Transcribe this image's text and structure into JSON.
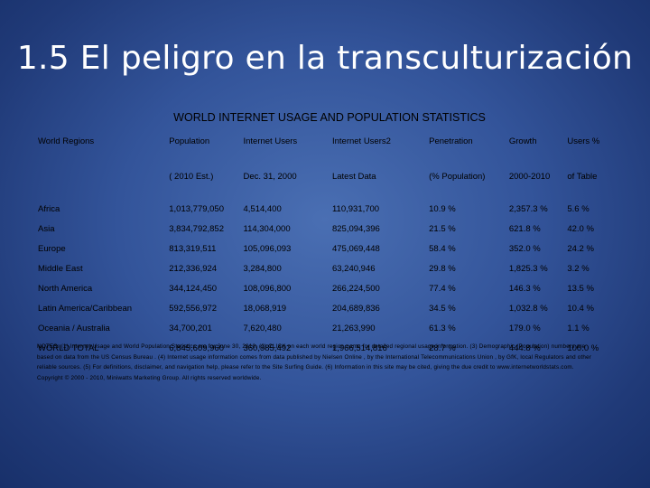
{
  "slide": {
    "title": "1.5 El peligro en la transculturización"
  },
  "table": {
    "title": "WORLD INTERNET USAGE AND POPULATION STATISTICS",
    "header": [
      "World Regions",
      "Population",
      "Internet Users",
      "Internet Users2",
      "Penetration",
      "Growth",
      "Users %"
    ],
    "subheader": [
      "",
      "( 2010 Est.)",
      "Dec. 31, 2000",
      "Latest Data",
      "(% Population)",
      "2000-2010",
      "of Table"
    ],
    "rows": [
      [
        "Africa",
        "1,013,779,050",
        "4,514,400",
        "110,931,700",
        "10.9 %",
        "2,357.3 %",
        "5.6 %"
      ],
      [
        "Asia",
        "3,834,792,852",
        "114,304,000",
        "825,094,396",
        "21.5 %",
        "621.8 %",
        "42.0 %"
      ],
      [
        "Europe",
        "813,319,511",
        "105,096,093",
        "475,069,448",
        "58.4 %",
        "352.0 %",
        "24.2 %"
      ],
      [
        "Middle East",
        "212,336,924",
        "3,284,800",
        "63,240,946",
        "29.8 %",
        "1,825.3 %",
        "3.2 %"
      ],
      [
        "North America",
        "344,124,450",
        "108,096,800",
        "266,224,500",
        "77.4 %",
        "146.3 %",
        "13.5 %"
      ],
      [
        "Latin America/Caribbean",
        "592,556,972",
        "18,068,919",
        "204,689,836",
        "34.5 %",
        "1,032.8 %",
        "10.4 %"
      ],
      [
        "Oceania / Australia",
        "34,700,201",
        "7,620,480",
        "21,263,990",
        "61.3 %",
        "179.0 %",
        "1.1 %"
      ],
      [
        "WORLD TOTAL",
        "6,845,609,960",
        "360,985,492",
        "1,966,514,816",
        "28.7 %",
        "444.8 %",
        "100.0 %"
      ]
    ]
  },
  "notes": {
    "lines": [
      "NOTES: (1) Internet Usage and World Population Statistics are for June 30, 2010. (2) CLICK on each world region name for detailed regional usage information. (3) Demographic (Population) numbers are",
      "based on data from the US Census Bureau . (4) Internet usage information comes from data published by Nielsen Online , by the International Telecommunications Union , by GfK, local Regulators and other",
      "reliable sources. (5) For definitions, disclaimer, and navigation help, please refer to the Site Surfing Guide. (6) Information in this site may be cited, giving the due credit to www.internetworldstats.com.",
      "Copyright © 2000 - 2010, Miniwatts Marketing Group. All rights reserved worldwide."
    ]
  }
}
